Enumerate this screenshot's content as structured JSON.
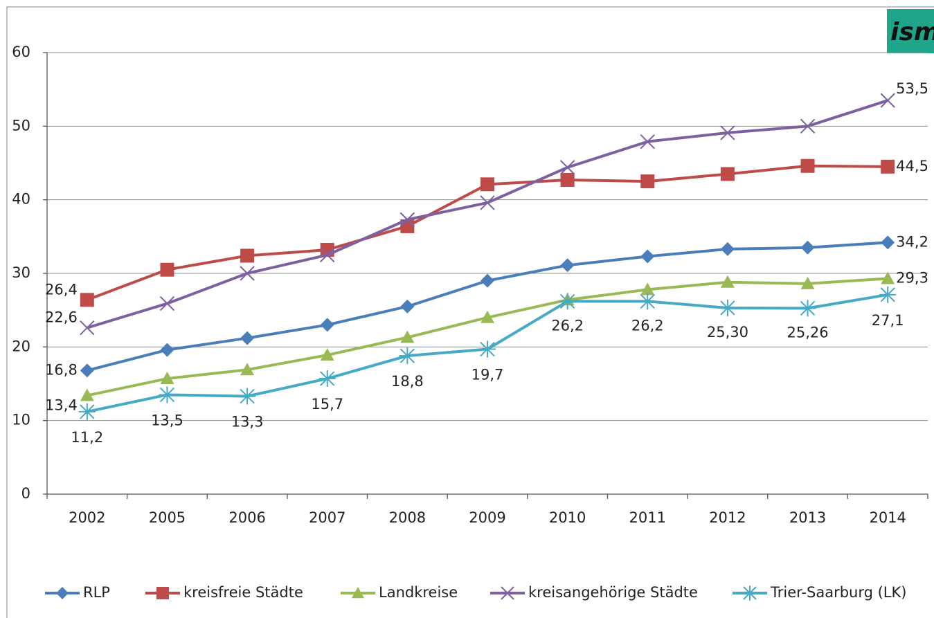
{
  "logo": "ism",
  "chart_data": {
    "type": "line",
    "categories": [
      "2002",
      "2005",
      "2006",
      "2007",
      "2008",
      "2009",
      "2010",
      "2011",
      "2012",
      "2013",
      "2014"
    ],
    "ylim": [
      0,
      60
    ],
    "yticks": [
      0,
      10,
      20,
      30,
      40,
      50,
      60
    ],
    "grid": true,
    "legend": "bottom",
    "series": [
      {
        "name": "RLP",
        "color": "#4a7ebb",
        "marker": "diamond",
        "values": [
          16.8,
          19.6,
          21.2,
          23.0,
          25.5,
          29.0,
          31.1,
          32.3,
          33.3,
          33.5,
          34.2
        ],
        "value_labels": [
          "16,8",
          null,
          null,
          null,
          null,
          null,
          null,
          null,
          null,
          null,
          "34,2"
        ]
      },
      {
        "name": "kreisfreie Städte",
        "color": "#be4b48",
        "marker": "square",
        "values": [
          26.4,
          30.5,
          32.4,
          33.2,
          36.4,
          42.1,
          42.7,
          42.5,
          43.5,
          44.6,
          44.5
        ],
        "value_labels": [
          "26,4",
          null,
          null,
          null,
          null,
          null,
          null,
          null,
          null,
          null,
          "44,5"
        ]
      },
      {
        "name": "Landkreise",
        "color": "#98b954",
        "marker": "triangle",
        "values": [
          13.4,
          15.7,
          16.9,
          18.9,
          21.3,
          24.0,
          26.4,
          27.8,
          28.8,
          28.6,
          29.3
        ],
        "value_labels": [
          "13,4",
          null,
          null,
          null,
          null,
          null,
          null,
          null,
          null,
          null,
          "29,3"
        ]
      },
      {
        "name": "kreisangehörige Städte",
        "color": "#7d60a0",
        "marker": "x",
        "values": [
          22.6,
          25.9,
          30.0,
          32.5,
          37.3,
          39.6,
          44.4,
          47.9,
          49.1,
          50.0,
          53.5
        ],
        "value_labels": [
          "22,6",
          null,
          null,
          null,
          null,
          null,
          null,
          null,
          null,
          null,
          "53,5"
        ]
      },
      {
        "name": "Trier-Saarburg (LK)",
        "color": "#46aac5",
        "marker": "star",
        "values": [
          11.2,
          13.5,
          13.3,
          15.7,
          18.8,
          19.7,
          26.2,
          26.2,
          25.3,
          25.26,
          27.1
        ],
        "value_labels": [
          "11,2",
          "13,5",
          "13,3",
          "15,7",
          "18,8",
          "19,7",
          "26,2",
          "26,2",
          "25,30",
          "25,26",
          "27,1"
        ]
      }
    ]
  }
}
